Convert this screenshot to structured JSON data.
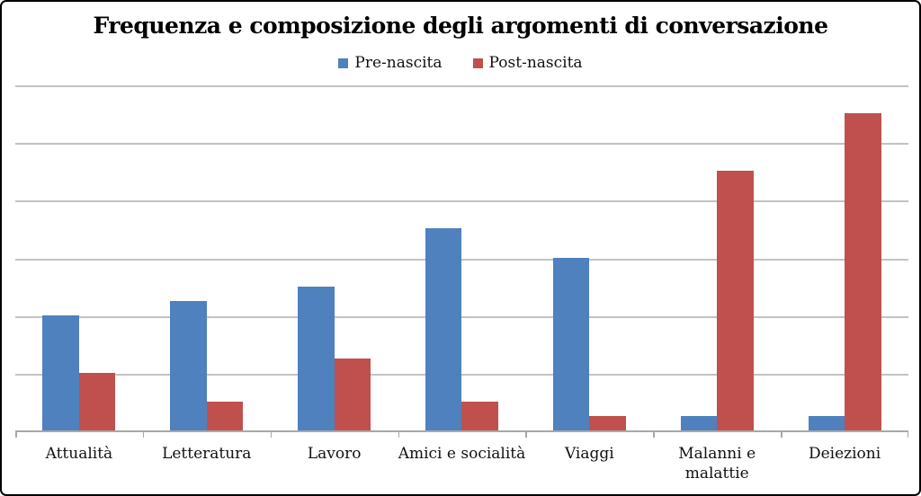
{
  "chart_data": {
    "type": "bar",
    "title": "Frequenza e composizione degli argomenti di conversazione",
    "categories": [
      "Attualità",
      "Letteratura",
      "Lavoro",
      "Amici e socialità",
      "Viaggi",
      "Malanni e\nmalattie",
      "Deiezioni"
    ],
    "series": [
      {
        "name": "Pre-nascita",
        "color": "#4E81BD",
        "values": [
          2,
          2.25,
          2.5,
          3.5,
          3,
          0.25,
          0.25
        ]
      },
      {
        "name": "Post-nascita",
        "color": "#C0504D",
        "values": [
          1,
          0.5,
          1.25,
          0.5,
          0.25,
          4.5,
          5.5
        ]
      }
    ],
    "xlabel": "",
    "ylabel": "",
    "ylim": [
      0,
      6
    ],
    "gridline_interval": 1,
    "y_tick_labels_visible": false,
    "grid": true,
    "legend_position": "top-center"
  },
  "colors": {
    "pre_nascita": "#4E81BD",
    "post_nascita": "#C0504D",
    "gridline": "#c2c2c2",
    "axis": "#a8a8a8",
    "border": "#000000",
    "background": "#ffffff",
    "title_text": "#000000"
  }
}
